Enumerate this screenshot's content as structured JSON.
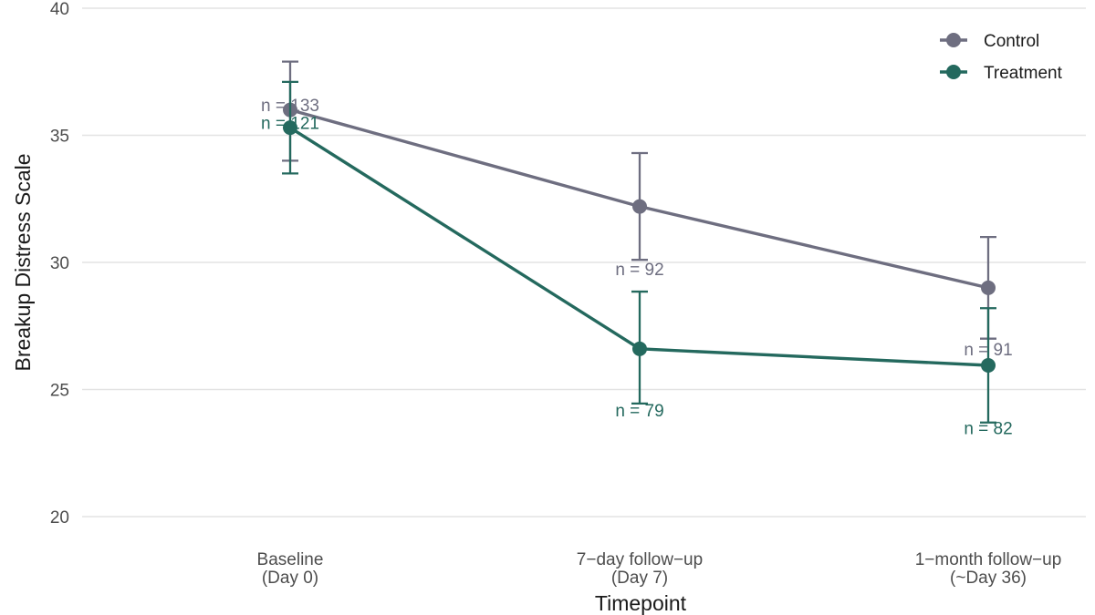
{
  "chart_data": {
    "type": "line",
    "xlabel": "Timepoint",
    "ylabel": "Breakup Distress Scale",
    "ylim": [
      20,
      40
    ],
    "yticks": [
      20,
      25,
      30,
      35,
      40
    ],
    "grid": "horizontal",
    "legend_position": "top-right",
    "categories": [
      [
        "Baseline",
        "(Day 0)"
      ],
      [
        "7−day follow−up",
        "(Day 7)"
      ],
      [
        "1−month follow−up",
        "(~Day 36)"
      ]
    ],
    "series": [
      {
        "name": "Control",
        "color": "#6e6e80",
        "values": [
          36.0,
          32.2,
          29.0
        ],
        "lower": [
          34.0,
          30.1,
          27.0
        ],
        "upper": [
          37.9,
          34.3,
          31.0
        ],
        "n_labels": [
          "n = 133",
          "n = 92",
          "n = 91"
        ],
        "n_label_y": [
          36.2,
          29.75,
          26.6
        ]
      },
      {
        "name": "Treatment",
        "color": "#24695e",
        "values": [
          35.3,
          26.6,
          25.95
        ],
        "lower": [
          33.5,
          24.45,
          23.7
        ],
        "upper": [
          37.1,
          28.85,
          28.2
        ],
        "n_labels": [
          "n = 121",
          "n = 79",
          "n = 82"
        ],
        "n_label_y": [
          35.5,
          24.2,
          23.5
        ]
      }
    ]
  }
}
